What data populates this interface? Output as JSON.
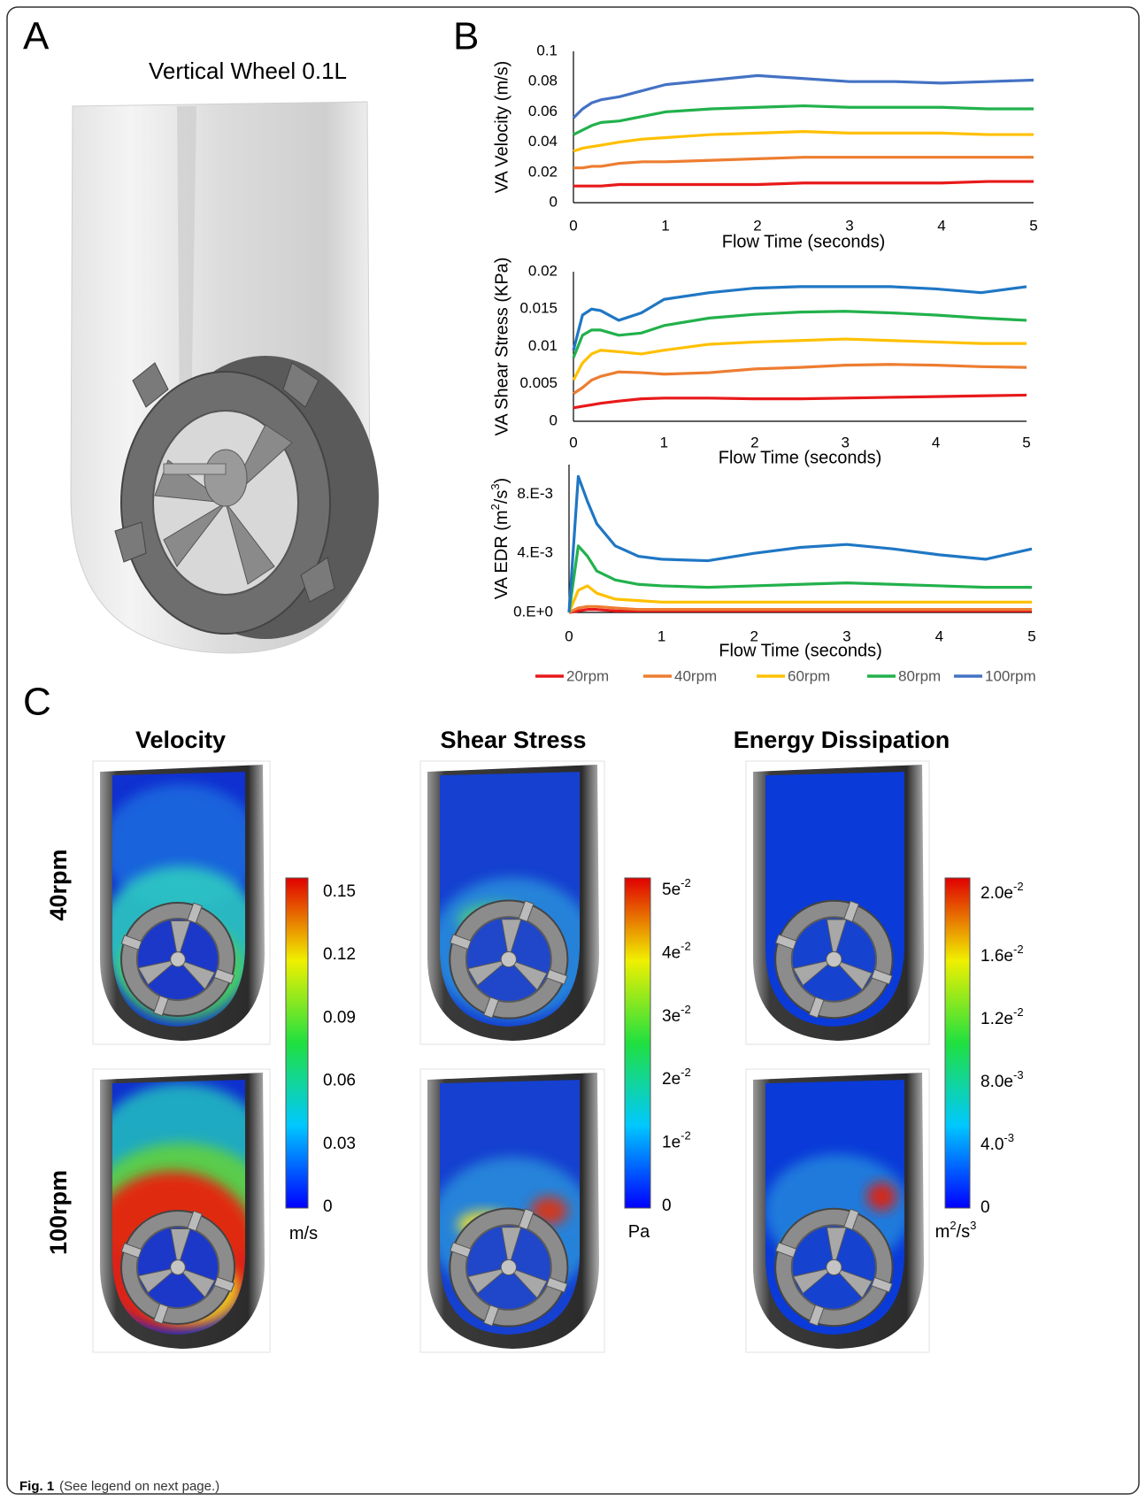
{
  "panel_labels": [
    "A",
    "B",
    "C"
  ],
  "panel_a": {
    "title": "Vertical Wheel 0.1L"
  },
  "chart_data": [
    {
      "type": "line",
      "y_label": "VA Velocity (m/s)",
      "x_label": "Flow Time (seconds)",
      "x": [
        0,
        0.1,
        0.2,
        0.3,
        0.5,
        0.75,
        1,
        1.5,
        2,
        2.5,
        3,
        3.5,
        4,
        4.5,
        5
      ],
      "xlim": [
        0,
        5
      ],
      "xticks": [
        0,
        1,
        2,
        3,
        4,
        5
      ],
      "ylim": [
        0,
        0.1
      ],
      "yticks": [
        0,
        0.02,
        0.04,
        0.06,
        0.08,
        0.1
      ],
      "series": [
        {
          "name": "20rpm",
          "color": "#e8191a",
          "values": [
            0.011,
            0.011,
            0.011,
            0.011,
            0.012,
            0.012,
            0.012,
            0.012,
            0.012,
            0.013,
            0.013,
            0.013,
            0.013,
            0.014,
            0.014
          ]
        },
        {
          "name": "40rpm",
          "color": "#ed7d31",
          "values": [
            0.023,
            0.023,
            0.024,
            0.024,
            0.026,
            0.027,
            0.027,
            0.028,
            0.029,
            0.03,
            0.03,
            0.03,
            0.03,
            0.03,
            0.03
          ]
        },
        {
          "name": "60rpm",
          "color": "#ffc000",
          "values": [
            0.034,
            0.036,
            0.037,
            0.038,
            0.04,
            0.042,
            0.043,
            0.045,
            0.046,
            0.047,
            0.046,
            0.046,
            0.046,
            0.045,
            0.045
          ]
        },
        {
          "name": "80rpm",
          "color": "#22b14c",
          "values": [
            0.045,
            0.048,
            0.051,
            0.053,
            0.054,
            0.057,
            0.06,
            0.062,
            0.063,
            0.064,
            0.063,
            0.063,
            0.063,
            0.062,
            0.062
          ]
        },
        {
          "name": "100rpm",
          "color": "#4472c4",
          "values": [
            0.056,
            0.062,
            0.066,
            0.068,
            0.07,
            0.074,
            0.078,
            0.081,
            0.084,
            0.082,
            0.08,
            0.08,
            0.079,
            0.08,
            0.081
          ]
        }
      ]
    },
    {
      "type": "line",
      "y_label": "VA Shear Stress (KPa)",
      "x_label": "Flow Time (seconds)",
      "x": [
        0,
        0.1,
        0.2,
        0.3,
        0.5,
        0.75,
        1,
        1.5,
        2,
        2.5,
        3,
        3.5,
        4,
        4.5,
        5
      ],
      "xlim": [
        0,
        5
      ],
      "xticks": [
        0,
        1,
        2,
        3,
        4,
        5
      ],
      "ylim": [
        0,
        0.02
      ],
      "yticks": [
        0,
        0.005,
        0.01,
        0.015,
        0.02
      ],
      "series": [
        {
          "color": "#e8191a",
          "values": [
            0.0018,
            0.002,
            0.0022,
            0.0024,
            0.0027,
            0.003,
            0.0031,
            0.0031,
            0.003,
            0.003,
            0.0031,
            0.0032,
            0.0033,
            0.0034,
            0.0035
          ]
        },
        {
          "color": "#ed7d31",
          "values": [
            0.0037,
            0.0045,
            0.0055,
            0.006,
            0.0066,
            0.0065,
            0.0063,
            0.0065,
            0.007,
            0.0072,
            0.0075,
            0.0076,
            0.0075,
            0.0073,
            0.0072
          ]
        },
        {
          "color": "#ffc000",
          "values": [
            0.0055,
            0.0078,
            0.009,
            0.0095,
            0.0093,
            0.009,
            0.0095,
            0.0103,
            0.0106,
            0.0108,
            0.011,
            0.0108,
            0.0106,
            0.0104,
            0.0104
          ]
        },
        {
          "color": "#22b14c",
          "values": [
            0.0085,
            0.0115,
            0.0122,
            0.0122,
            0.0115,
            0.0118,
            0.0128,
            0.0138,
            0.0143,
            0.0146,
            0.0147,
            0.0145,
            0.0142,
            0.0138,
            0.0135
          ]
        },
        {
          "color": "#1f77c4",
          "values": [
            0.0095,
            0.0142,
            0.015,
            0.0148,
            0.0135,
            0.0145,
            0.0163,
            0.0172,
            0.0178,
            0.018,
            0.018,
            0.018,
            0.0177,
            0.0172,
            0.018
          ]
        }
      ]
    },
    {
      "type": "line",
      "y_label": [
        {
          "text": "VA EDR (m"
        },
        {
          "text": "2",
          "sup": true
        },
        {
          "text": "/s"
        },
        {
          "text": "3",
          "sup": true
        },
        {
          "text": ")"
        }
      ],
      "x_label": "Flow Time (seconds)",
      "x": [
        0,
        0.1,
        0.2,
        0.3,
        0.5,
        0.75,
        1,
        1.5,
        2,
        2.5,
        3,
        3.5,
        4,
        4.5,
        5
      ],
      "xlim": [
        0,
        5
      ],
      "xticks": [
        0,
        1,
        2,
        3,
        4,
        5
      ],
      "ylim": [
        0,
        0.01
      ],
      "yticks": [
        {
          "value": 0,
          "label": "0.E+0"
        },
        {
          "value": 0.004,
          "label": "4.E-3"
        },
        {
          "value": 0.008,
          "label": "8.E-3"
        }
      ],
      "series": [
        {
          "color": "#e8191a",
          "values": [
            0,
            0.0001,
            0.0002,
            0.0002,
            0.0001,
            0.0001,
            0.0001,
            0.0001,
            0.0001,
            0.0001,
            0.0001,
            0.0001,
            0.0001,
            0.0001,
            0.0001
          ]
        },
        {
          "color": "#ed7d31",
          "values": [
            0,
            0.0003,
            0.0004,
            0.0004,
            0.0003,
            0.0002,
            0.0002,
            0.0002,
            0.0002,
            0.0002,
            0.0002,
            0.0002,
            0.0002,
            0.0002,
            0.0002
          ]
        },
        {
          "color": "#ffc000",
          "values": [
            0,
            0.0015,
            0.0018,
            0.0013,
            0.0009,
            0.0008,
            0.0007,
            0.0007,
            0.0007,
            0.0007,
            0.0007,
            0.0007,
            0.0007,
            0.0007,
            0.0007
          ]
        },
        {
          "color": "#22b14c",
          "values": [
            0,
            0.0045,
            0.0038,
            0.0028,
            0.0022,
            0.0019,
            0.0018,
            0.0017,
            0.0018,
            0.0019,
            0.002,
            0.0019,
            0.0018,
            0.0017,
            0.0017
          ]
        },
        {
          "color": "#1f77c4",
          "values": [
            0,
            0.0092,
            0.0075,
            0.006,
            0.0045,
            0.0038,
            0.0036,
            0.0035,
            0.004,
            0.0044,
            0.0046,
            0.0043,
            0.0039,
            0.0036,
            0.0043
          ]
        }
      ]
    }
  ],
  "panel_c": {
    "columns": [
      "Velocity",
      "Shear Stress",
      "Energy Dissipation"
    ],
    "rows": [
      "40rpm",
      "100rpm"
    ],
    "colorbars": [
      {
        "ticks": [
          0.15,
          0.12,
          0.09,
          0.06,
          0.03,
          0
        ],
        "unit": [
          {
            "text": "m/s"
          }
        ]
      },
      {
        "ticks": [
          {
            "value": 0.05,
            "label": "5e",
            "exp": "-2"
          },
          {
            "value": 0.04,
            "label": "4e",
            "exp": "-2"
          },
          {
            "value": 0.03,
            "label": "3e",
            "exp": "-2"
          },
          {
            "value": 0.02,
            "label": "2e",
            "exp": "-2"
          },
          {
            "value": 0.01,
            "label": "1e",
            "exp": "-2"
          },
          0
        ],
        "unit": [
          {
            "text": "Pa"
          }
        ]
      },
      {
        "ticks": [
          {
            "value": 0.02,
            "label": "2.0e",
            "exp": "-2"
          },
          {
            "value": 0.016,
            "label": "1.6e",
            "exp": "-2"
          },
          {
            "value": 0.012,
            "label": "1.2e",
            "exp": "-2"
          },
          {
            "value": 0.008,
            "label": "8.0e",
            "exp": "-3"
          },
          {
            "value": 0.004,
            "label": "4.0",
            "exp": "-3"
          },
          0
        ],
        "unit": [
          {
            "text": "m"
          },
          {
            "text": "2",
            "sup": true
          },
          {
            "text": "/s"
          },
          {
            "text": "3",
            "sup": true
          }
        ]
      }
    ]
  },
  "caption": {
    "label": "Fig. 1",
    "text": "(See legend on next page.)"
  }
}
